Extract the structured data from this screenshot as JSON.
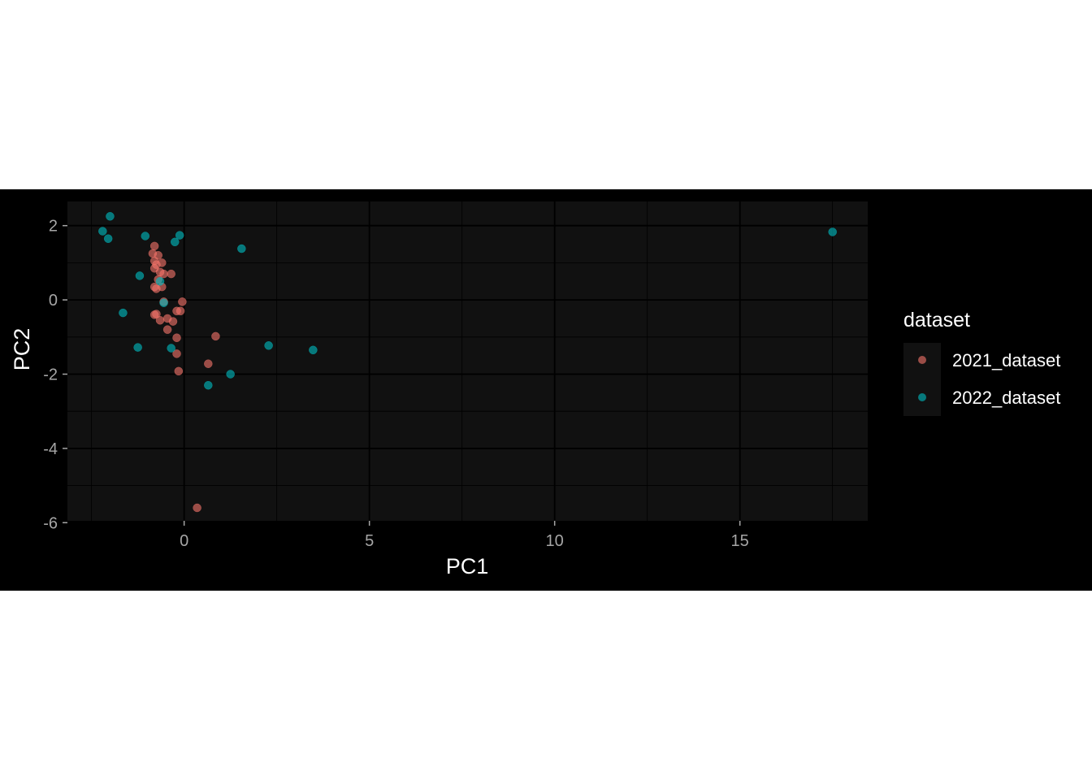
{
  "chart_data": {
    "type": "scatter",
    "title": "",
    "xlabel": "PC1",
    "ylabel": "PC2",
    "xlim": [
      -3.15,
      18.45
    ],
    "ylim": [
      -5.95,
      2.65
    ],
    "x_ticks": [
      0,
      5,
      10,
      15
    ],
    "y_ticks": [
      2,
      0,
      -2,
      -4,
      -6
    ],
    "x_tick_labels": [
      "0",
      "5",
      "10",
      "15"
    ],
    "y_tick_labels": [
      "2",
      "0",
      "-2",
      "-4",
      "-6"
    ],
    "grid": true,
    "legend": {
      "title": "dataset",
      "position": "right"
    },
    "series": [
      {
        "name": "2021_dataset",
        "color": "#F8766D",
        "points": [
          {
            "x": -0.8,
            "y": 1.45
          },
          {
            "x": -0.85,
            "y": 1.25
          },
          {
            "x": -0.7,
            "y": 1.2
          },
          {
            "x": -0.8,
            "y": 1.05
          },
          {
            "x": -0.75,
            "y": 0.95
          },
          {
            "x": -0.6,
            "y": 1.0
          },
          {
            "x": -0.8,
            "y": 0.85
          },
          {
            "x": -0.65,
            "y": 0.75
          },
          {
            "x": -0.55,
            "y": 0.7
          },
          {
            "x": -0.35,
            "y": 0.7
          },
          {
            "x": -0.7,
            "y": 0.55
          },
          {
            "x": -0.8,
            "y": 0.35
          },
          {
            "x": -0.6,
            "y": 0.35
          },
          {
            "x": -0.75,
            "y": 0.3
          },
          {
            "x": -0.55,
            "y": -0.05
          },
          {
            "x": -0.05,
            "y": -0.05
          },
          {
            "x": -0.2,
            "y": -0.3
          },
          {
            "x": -0.1,
            "y": -0.3
          },
          {
            "x": -0.8,
            "y": -0.4
          },
          {
            "x": -0.75,
            "y": -0.38
          },
          {
            "x": -0.45,
            "y": -0.5
          },
          {
            "x": -0.65,
            "y": -0.55
          },
          {
            "x": -0.3,
            "y": -0.58
          },
          {
            "x": -0.45,
            "y": -0.8
          },
          {
            "x": -0.2,
            "y": -1.02
          },
          {
            "x": 0.85,
            "y": -0.98
          },
          {
            "x": -0.2,
            "y": -1.45
          },
          {
            "x": 0.65,
            "y": -1.72
          },
          {
            "x": -0.15,
            "y": -1.92
          },
          {
            "x": 0.35,
            "y": -5.6
          }
        ]
      },
      {
        "name": "2022_dataset",
        "color": "#00BFC4",
        "points": [
          {
            "x": -2.0,
            "y": 2.25
          },
          {
            "x": -2.2,
            "y": 1.85
          },
          {
            "x": -2.05,
            "y": 1.65
          },
          {
            "x": -1.05,
            "y": 1.72
          },
          {
            "x": -0.12,
            "y": 1.74
          },
          {
            "x": -0.25,
            "y": 1.56
          },
          {
            "x": 1.55,
            "y": 1.38
          },
          {
            "x": 17.5,
            "y": 1.83
          },
          {
            "x": -1.2,
            "y": 0.65
          },
          {
            "x": -0.65,
            "y": 0.5
          },
          {
            "x": -0.55,
            "y": -0.08
          },
          {
            "x": -1.65,
            "y": -0.35
          },
          {
            "x": -1.25,
            "y": -1.28
          },
          {
            "x": -0.35,
            "y": -1.3
          },
          {
            "x": 2.28,
            "y": -1.23
          },
          {
            "x": 3.48,
            "y": -1.35
          },
          {
            "x": 1.25,
            "y": -2.0
          },
          {
            "x": 0.65,
            "y": -2.3
          }
        ]
      }
    ]
  }
}
